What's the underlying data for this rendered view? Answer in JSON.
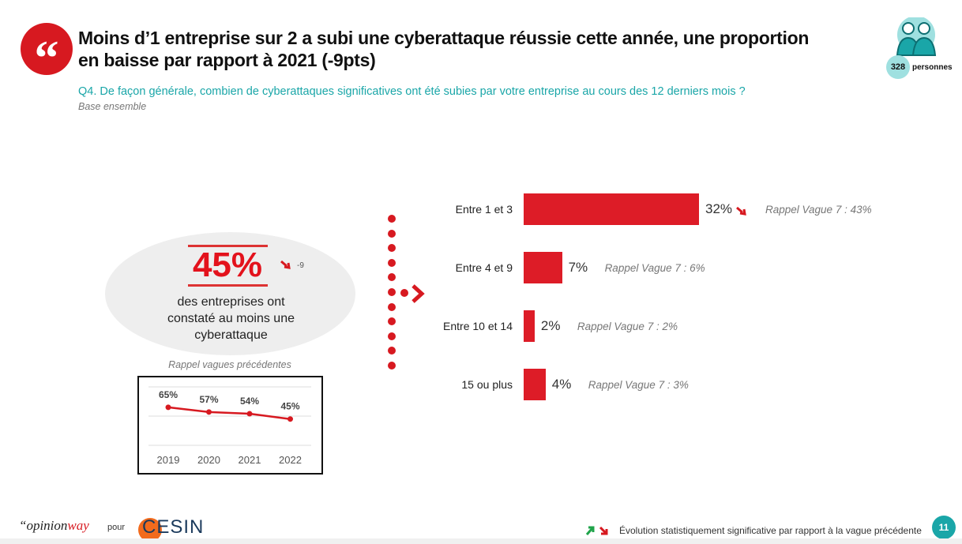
{
  "header": {
    "title_line1": "Moins d’1 entreprise sur 2 a subi une cyberattaque réussie cette année, une proportion",
    "title_line2": "en baisse par rapport à 2021 (-9pts)",
    "question": "Q4. De façon générale, combien de cyberattaques significatives ont été subies par votre entreprise au cours des 12 derniers mois ?",
    "base": "Base ensemble",
    "quote_icon": "quote-icon",
    "sample_count": "328",
    "sample_label": "personnes"
  },
  "highlight": {
    "value": "45%",
    "delta": "-9",
    "description": "des entreprises ont constaté au moins une cyberattaque",
    "trend": "down"
  },
  "chart_data": [
    {
      "type": "line",
      "title": "Rappel vagues précédentes",
      "categories": [
        "2019",
        "2020",
        "2021",
        "2022"
      ],
      "values": [
        65,
        57,
        54,
        45
      ],
      "labels": [
        "65%",
        "57%",
        "54%",
        "45%"
      ],
      "ylim": [
        0,
        100
      ],
      "grid": true,
      "color": "#d71920"
    },
    {
      "type": "bar",
      "orientation": "horizontal",
      "categories": [
        "Entre 1 et 3",
        "Entre 4 et 9",
        "Entre 10 et 14",
        "15 ou plus"
      ],
      "values": [
        32,
        7,
        2,
        4
      ],
      "labels": [
        "32%",
        "7%",
        "2%",
        "4%"
      ],
      "recall": [
        "Rappel Vague 7 : 43%",
        "Rappel Vague 7 : 6%",
        "Rappel Vague 7 : 2%",
        "Rappel Vague 7 : 3%"
      ],
      "significant_down": [
        true,
        false,
        false,
        false
      ],
      "color": "#dd1c27"
    }
  ],
  "footer": {
    "brand": "opinionway",
    "pour": "pour",
    "client": "CESIN",
    "legend": "Évolution statistiquement significative par rapport à la vague précédente",
    "page": "11",
    "up_color": "#1fa34a",
    "down_color": "#d71920"
  }
}
